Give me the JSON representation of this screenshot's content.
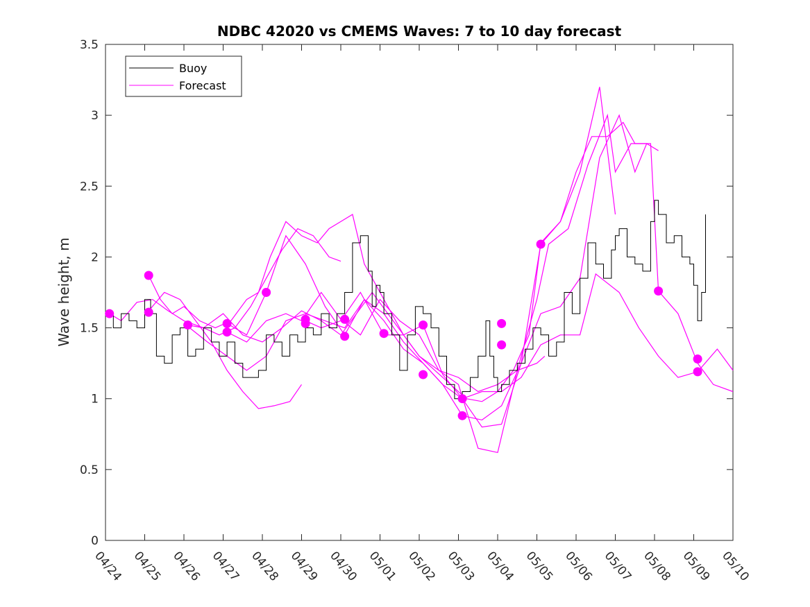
{
  "chart_data": {
    "type": "line",
    "title": "NDBC 42020 vs CMEMS Waves: 7 to 10 day forecast",
    "xlabel": "",
    "ylabel": "Wave height, m",
    "x_tick_labels": [
      "04/24",
      "04/25",
      "04/26",
      "04/27",
      "04/28",
      "04/29",
      "04/30",
      "05/01",
      "05/02",
      "05/03",
      "05/04",
      "05/05",
      "05/06",
      "05/07",
      "05/08",
      "05/09",
      "05/10"
    ],
    "xlim_days": [
      0,
      16
    ],
    "ylim": [
      0,
      3.5
    ],
    "y_ticks": [
      0,
      0.5,
      1,
      1.5,
      2,
      2.5,
      3,
      3.5
    ],
    "grid": false,
    "legend": {
      "position": "top-left",
      "entries": [
        "Buoy",
        "Forecast"
      ]
    },
    "colors": {
      "buoy": "#000000",
      "forecast": "#ff00ff"
    },
    "buoy": {
      "name": "Buoy",
      "x": [
        0,
        0.2,
        0.4,
        0.6,
        0.8,
        1.0,
        1.15,
        1.3,
        1.5,
        1.7,
        1.9,
        2.1,
        2.3,
        2.5,
        2.7,
        2.9,
        3.1,
        3.3,
        3.5,
        3.7,
        3.9,
        4.1,
        4.3,
        4.5,
        4.7,
        4.9,
        5.1,
        5.3,
        5.5,
        5.7,
        5.9,
        6.1,
        6.3,
        6.5,
        6.7,
        6.8,
        6.9,
        7.0,
        7.1,
        7.3,
        7.5,
        7.7,
        7.9,
        8.1,
        8.3,
        8.5,
        8.7,
        8.9,
        9.1,
        9.3,
        9.5,
        9.7,
        9.8,
        9.9,
        10.0,
        10.1,
        10.3,
        10.5,
        10.7,
        10.9,
        11.1,
        11.3,
        11.5,
        11.7,
        11.9,
        12.1,
        12.3,
        12.5,
        12.7,
        12.9,
        13.0,
        13.1,
        13.3,
        13.5,
        13.7,
        13.9,
        14.0,
        14.1,
        14.3,
        14.5,
        14.7,
        14.9,
        15.0,
        15.1,
        15.2,
        15.3
      ],
      "y": [
        1.6,
        1.5,
        1.6,
        1.55,
        1.5,
        1.7,
        1.6,
        1.3,
        1.25,
        1.45,
        1.5,
        1.3,
        1.35,
        1.5,
        1.4,
        1.3,
        1.4,
        1.25,
        1.15,
        1.15,
        1.2,
        1.45,
        1.4,
        1.3,
        1.45,
        1.4,
        1.5,
        1.45,
        1.6,
        1.5,
        1.6,
        1.75,
        2.1,
        2.15,
        1.9,
        1.65,
        1.8,
        1.75,
        1.6,
        1.45,
        1.2,
        1.45,
        1.65,
        1.6,
        1.5,
        1.3,
        1.1,
        1.0,
        1.05,
        1.15,
        1.3,
        1.55,
        1.3,
        1.15,
        1.05,
        1.1,
        1.2,
        1.25,
        1.35,
        1.5,
        1.45,
        1.3,
        1.4,
        1.75,
        1.6,
        1.85,
        2.1,
        1.95,
        1.85,
        2.05,
        2.15,
        2.2,
        2.0,
        1.95,
        1.9,
        2.25,
        2.4,
        2.3,
        2.1,
        2.15,
        2.0,
        1.95,
        1.8,
        1.55,
        1.75,
        2.3
      ]
    },
    "forecast_series": [
      {
        "x": [
          0.1,
          0.4,
          0.8,
          1.2,
          1.6,
          2.0,
          2.5,
          3.0,
          3.5,
          4.0,
          4.5,
          5.0,
          5.5,
          6.0,
          6.4,
          6.8,
          7.2,
          7.6,
          8.0,
          8.5,
          9.0,
          9.5,
          10.0,
          10.5,
          11.0,
          11.2
        ],
        "y": [
          1.6,
          1.55,
          1.68,
          1.7,
          1.62,
          1.55,
          1.5,
          1.6,
          1.45,
          1.4,
          1.5,
          1.62,
          1.55,
          1.45,
          1.6,
          1.75,
          1.6,
          1.45,
          1.3,
          1.2,
          1.15,
          1.05,
          1.1,
          1.2,
          1.25,
          1.3
        ]
      },
      {
        "x": [
          1.1,
          1.4,
          1.7,
          2.0,
          2.4,
          2.8,
          3.2,
          3.6,
          3.9,
          4.2,
          4.6,
          5.0,
          5.4,
          5.7,
          6.0,
          6.3,
          6.6,
          6.9,
          7.2,
          7.6,
          8.0,
          8.4,
          8.8,
          9.2,
          9.6,
          10.0,
          10.4,
          10.8,
          11.1,
          11.6,
          12.0,
          12.4,
          12.8,
          13.2,
          13.5,
          13.8
        ],
        "y": [
          1.87,
          1.7,
          1.6,
          1.65,
          1.55,
          1.5,
          1.55,
          1.7,
          1.75,
          2.0,
          2.25,
          2.15,
          2.1,
          2.2,
          2.25,
          2.3,
          1.95,
          1.8,
          1.65,
          1.45,
          1.3,
          1.2,
          1.1,
          1.0,
          0.98,
          1.05,
          1.2,
          1.45,
          2.1,
          2.25,
          2.6,
          2.85,
          2.85,
          2.95,
          2.8,
          2.8
        ]
      },
      {
        "x": [
          1.1,
          1.5,
          1.9,
          2.3,
          2.7,
          3.1,
          3.5,
          3.9,
          4.3,
          4.7,
          5.0
        ],
        "y": [
          1.62,
          1.75,
          1.7,
          1.55,
          1.4,
          1.2,
          1.05,
          0.93,
          0.95,
          0.98,
          1.1
        ]
      },
      {
        "x": [
          2.1,
          2.5,
          2.9,
          3.3,
          3.7,
          4.1,
          4.5,
          4.9,
          5.3,
          5.7,
          6.0
        ],
        "y": [
          1.52,
          1.5,
          1.45,
          1.5,
          1.65,
          1.85,
          2.05,
          2.2,
          2.15,
          2.0,
          1.97
        ]
      },
      {
        "x": [
          2.1,
          2.6,
          3.1,
          3.6,
          4.1,
          4.6,
          5.1,
          5.6,
          6.1,
          6.6,
          7.1,
          7.6,
          8.1,
          8.6,
          9.1,
          9.6,
          10.1,
          10.6,
          11.1,
          11.6,
          12.1,
          12.6,
          13.1,
          13.5,
          13.8,
          14.1
        ],
        "y": [
          1.51,
          1.4,
          1.3,
          1.2,
          1.3,
          1.55,
          1.6,
          1.55,
          1.5,
          1.7,
          1.55,
          1.35,
          1.25,
          1.1,
          0.88,
          0.85,
          0.95,
          1.25,
          1.6,
          1.65,
          1.85,
          2.7,
          3.0,
          2.6,
          2.8,
          2.75
        ]
      },
      {
        "x": [
          3.1,
          3.6,
          4.1,
          4.6,
          5.1,
          5.6,
          6.1,
          6.6,
          7.1,
          7.6,
          8.1,
          8.6,
          9.1,
          9.6,
          10.1,
          10.6,
          11.1,
          11.6,
          12.1,
          12.6,
          13.0
        ],
        "y": [
          1.53,
          1.45,
          1.75,
          2.15,
          1.95,
          1.65,
          1.45,
          1.7,
          1.6,
          1.4,
          1.25,
          1.1,
          1.0,
          0.8,
          0.82,
          1.25,
          2.09,
          2.25,
          2.6,
          3.2,
          2.3
        ]
      },
      {
        "x": [
          3.1,
          3.6,
          4.1,
          4.6,
          5.0,
          5.5,
          6.0,
          6.5,
          7.0,
          7.5,
          8.0,
          8.5,
          9.0,
          9.5,
          10.0,
          10.5,
          11.0,
          11.3,
          11.8,
          12.3,
          12.8,
          13.0,
          13.4,
          13.9,
          14.1,
          14.6,
          15.1,
          15.5,
          16.0
        ],
        "y": [
          1.47,
          1.4,
          1.55,
          1.6,
          1.55,
          1.75,
          1.56,
          1.45,
          1.7,
          1.55,
          1.45,
          1.2,
          1.1,
          0.65,
          0.62,
          1.2,
          1.7,
          2.09,
          2.2,
          2.65,
          3.0,
          2.6,
          2.8,
          2.8,
          1.76,
          1.6,
          1.25,
          1.1,
          1.05
        ]
      },
      {
        "x": [
          5.1,
          5.5,
          6.0,
          6.5,
          7.1,
          7.6,
          8.1,
          8.6,
          9.1,
          9.6,
          10.1,
          10.6,
          11.1,
          11.6,
          12.1,
          12.5,
          13.1,
          13.6,
          14.1,
          14.6,
          15.1,
          15.6,
          16.0
        ],
        "y": [
          1.55,
          1.5,
          1.55,
          1.75,
          1.45,
          1.45,
          1.52,
          1.17,
          1.0,
          1.05,
          1.05,
          1.15,
          1.38,
          1.45,
          1.45,
          1.88,
          1.75,
          1.5,
          1.3,
          1.15,
          1.19,
          1.35,
          1.2
        ]
      }
    ],
    "forecast_markers": {
      "x": [
        0.1,
        1.1,
        1.1,
        2.1,
        3.1,
        3.1,
        4.1,
        5.1,
        5.1,
        6.1,
        6.1,
        7.1,
        8.1,
        8.1,
        9.1,
        9.1,
        10.1,
        10.1,
        11.1,
        14.1,
        15.1,
        15.1
      ],
      "y": [
        1.6,
        1.87,
        1.61,
        1.52,
        1.53,
        1.47,
        1.75,
        1.56,
        1.53,
        1.56,
        1.44,
        1.46,
        1.52,
        1.17,
        1.0,
        0.88,
        1.53,
        1.38,
        2.09,
        1.76,
        1.28,
        1.19
      ]
    }
  }
}
